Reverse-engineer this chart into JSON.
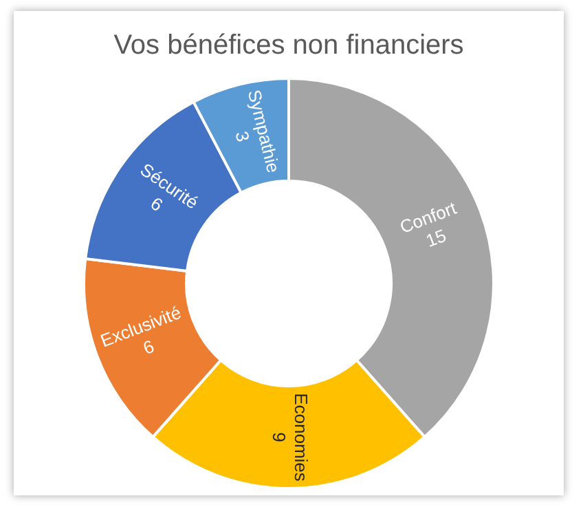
{
  "chart_data": {
    "type": "donut",
    "title": "Vos bénéfices non financiers",
    "categories": [
      "Confort",
      "Economies",
      "Exclusivité",
      "Sécurité",
      "Sympathie"
    ],
    "values": [
      15,
      9,
      6,
      6,
      3
    ],
    "colors": [
      "#a5a5a5",
      "#ffc000",
      "#ed7d31",
      "#4472c4",
      "#5b9bd5"
    ],
    "data_labels": true,
    "legend": false
  }
}
